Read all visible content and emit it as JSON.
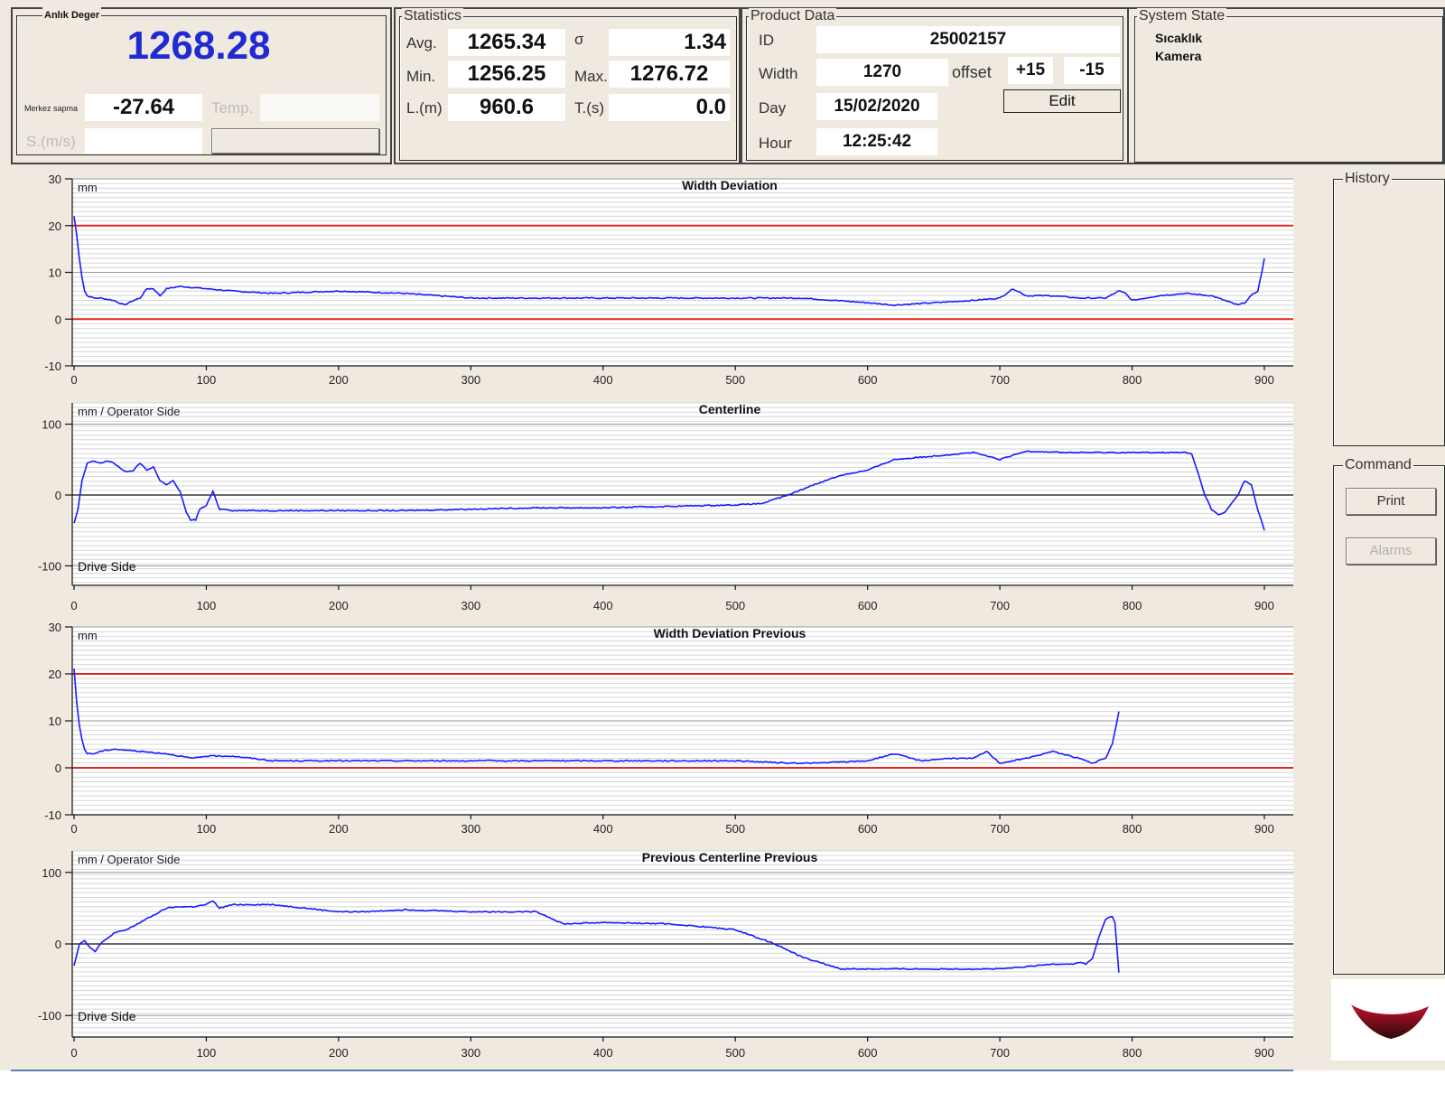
{
  "instant": {
    "legend": "Anlık Deger",
    "value": "1268.28",
    "center_dev_label": "Merkez sapma",
    "center_dev_value": "-27.64",
    "temp_label": "Temp.",
    "speed_label": "S.(m/s)"
  },
  "statistics": {
    "legend": "Statistics",
    "avg_label": "Avg.",
    "avg_value": "1265.34",
    "sigma_label": "σ",
    "sigma_value": "1.34",
    "min_label": "Min.",
    "min_value": "1256.25",
    "max_label": "Max.",
    "max_value": "1276.72",
    "length_label": "L.(m)",
    "length_value": "960.6",
    "time_label": "T.(s)",
    "time_value": "0.0"
  },
  "product": {
    "legend": "Product Data",
    "id_label": "ID",
    "id_value": "25002157",
    "width_label": "Width",
    "width_value": "1270",
    "offset_label": "offset",
    "offset_plus": "+15",
    "offset_minus": "-15",
    "day_label": "Day",
    "day_value": "15/02/2020",
    "edit_label": "Edit",
    "hour_label": "Hour",
    "hour_value": "12:25:42"
  },
  "system_state": {
    "legend": "System State",
    "items": [
      "Sıcaklık",
      "Kamera"
    ]
  },
  "history": {
    "legend": "History"
  },
  "command": {
    "legend": "Command",
    "print_label": "Print",
    "alarms_label": "Alarms"
  },
  "colors": {
    "series": "#1a1aff",
    "limit": "#e8231c",
    "value_blue": "#1f2bd1"
  },
  "chart_data": [
    {
      "type": "line",
      "title": "Width Deviation",
      "ylabel": "mm",
      "bottom_label": "",
      "xlim": [
        0,
        920
      ],
      "ylim": [
        -10,
        30
      ],
      "yticks": [
        -10,
        0,
        10,
        20,
        30
      ],
      "xticks": [
        0,
        100,
        200,
        300,
        400,
        500,
        600,
        700,
        800,
        900
      ],
      "grid": true,
      "limits": [
        20,
        0
      ],
      "series": [
        {
          "x": [
            0,
            2,
            4,
            6,
            8,
            10,
            15,
            20,
            30,
            38,
            45,
            50,
            55,
            60,
            65,
            70,
            80,
            100,
            120,
            150,
            200,
            250,
            300,
            350,
            400,
            450,
            500,
            550,
            600,
            620,
            650,
            680,
            700,
            710,
            720,
            740,
            760,
            780,
            790,
            795,
            800,
            820,
            840,
            860,
            870,
            880,
            885,
            890,
            895,
            898,
            900
          ],
          "y": [
            22,
            18,
            13,
            9,
            6,
            5,
            4.5,
            4.5,
            4,
            3,
            4,
            4.5,
            6.5,
            6.5,
            5,
            6.5,
            7,
            6.5,
            6,
            5.5,
            6,
            5.5,
            4.5,
            4.5,
            4.5,
            4.5,
            4.5,
            4.5,
            3.5,
            3,
            3.5,
            4,
            4.5,
            6.5,
            5,
            5,
            4.5,
            4.5,
            6,
            5.5,
            4,
            5,
            5.5,
            5,
            4,
            3,
            3.5,
            5,
            6,
            10,
            13
          ]
        }
      ]
    },
    {
      "type": "line",
      "title": "Centerline",
      "ylabel": "mm / Operator Side",
      "bottom_label": "Drive Side",
      "xlim": [
        0,
        920
      ],
      "ylim": [
        -130,
        130
      ],
      "yticks": [
        -100,
        0,
        100
      ],
      "xticks": [
        0,
        100,
        200,
        300,
        400,
        500,
        600,
        700,
        800,
        900
      ],
      "grid": true,
      "limits": [],
      "series": [
        {
          "x": [
            0,
            3,
            6,
            10,
            15,
            20,
            25,
            30,
            35,
            40,
            45,
            50,
            55,
            60,
            65,
            70,
            75,
            80,
            85,
            88,
            92,
            95,
            100,
            105,
            110,
            115,
            120,
            150,
            200,
            250,
            300,
            350,
            400,
            450,
            500,
            520,
            540,
            560,
            580,
            600,
            620,
            650,
            680,
            690,
            700,
            720,
            750,
            800,
            820,
            840,
            845,
            850,
            855,
            860,
            865,
            870,
            880,
            885,
            890,
            895,
            900
          ],
          "y": [
            -40,
            -20,
            20,
            45,
            48,
            45,
            48,
            45,
            38,
            32,
            35,
            45,
            35,
            40,
            20,
            15,
            20,
            5,
            -25,
            -35,
            -35,
            -20,
            -15,
            5,
            -20,
            -20,
            -22,
            -22,
            -22,
            -22,
            -20,
            -18,
            -18,
            -16,
            -14,
            -12,
            0,
            15,
            28,
            35,
            50,
            55,
            60,
            55,
            50,
            62,
            60,
            60,
            60,
            60,
            58,
            30,
            0,
            -20,
            -28,
            -25,
            0,
            20,
            15,
            -20,
            -50
          ]
        }
      ]
    },
    {
      "type": "line",
      "title": "Width Deviation Previous",
      "ylabel": "mm",
      "bottom_label": "",
      "xlim": [
        0,
        920
      ],
      "ylim": [
        -10,
        30
      ],
      "yticks": [
        -10,
        0,
        10,
        20,
        30
      ],
      "xticks": [
        0,
        100,
        200,
        300,
        400,
        500,
        600,
        700,
        800,
        900
      ],
      "grid": true,
      "limits": [
        20,
        0
      ],
      "series": [
        {
          "x": [
            0,
            2,
            4,
            6,
            8,
            10,
            15,
            20,
            30,
            50,
            70,
            90,
            100,
            120,
            150,
            200,
            250,
            300,
            350,
            400,
            450,
            500,
            540,
            560,
            600,
            620,
            640,
            660,
            680,
            690,
            700,
            720,
            740,
            760,
            770,
            780,
            785,
            790
          ],
          "y": [
            21,
            14,
            9,
            6,
            4,
            3,
            3,
            3.5,
            4,
            3.5,
            3,
            2,
            2.5,
            2.5,
            1.5,
            1.5,
            1.5,
            1.5,
            1.5,
            1.5,
            1.5,
            1.5,
            1,
            1,
            1.5,
            3,
            1.5,
            2,
            2,
            3.5,
            1,
            2,
            3.5,
            2,
            1,
            2,
            5,
            12
          ]
        }
      ]
    },
    {
      "type": "line",
      "title": "Previous Centerline Previous",
      "ylabel": "mm / Operator Side",
      "bottom_label": "Drive Side",
      "xlim": [
        0,
        920
      ],
      "ylim": [
        -130,
        130
      ],
      "yticks": [
        -100,
        0,
        100
      ],
      "xticks": [
        0,
        100,
        200,
        300,
        400,
        500,
        600,
        700,
        800,
        900
      ],
      "grid": true,
      "limits": [],
      "series": [
        {
          "x": [
            0,
            4,
            8,
            12,
            16,
            20,
            30,
            40,
            50,
            60,
            70,
            80,
            90,
            100,
            105,
            110,
            120,
            130,
            150,
            200,
            220,
            250,
            300,
            350,
            370,
            400,
            450,
            500,
            530,
            550,
            580,
            600,
            650,
            700,
            720,
            740,
            755,
            760,
            765,
            770,
            775,
            780,
            785,
            787,
            790
          ],
          "y": [
            -30,
            0,
            5,
            -5,
            -10,
            0,
            15,
            20,
            30,
            40,
            50,
            52,
            52,
            55,
            60,
            50,
            55,
            55,
            55,
            45,
            45,
            48,
            45,
            45,
            28,
            30,
            28,
            20,
            0,
            -18,
            -35,
            -35,
            -35,
            -35,
            -32,
            -28,
            -28,
            -26,
            -28,
            -20,
            10,
            35,
            38,
            30,
            -40
          ]
        }
      ]
    }
  ]
}
